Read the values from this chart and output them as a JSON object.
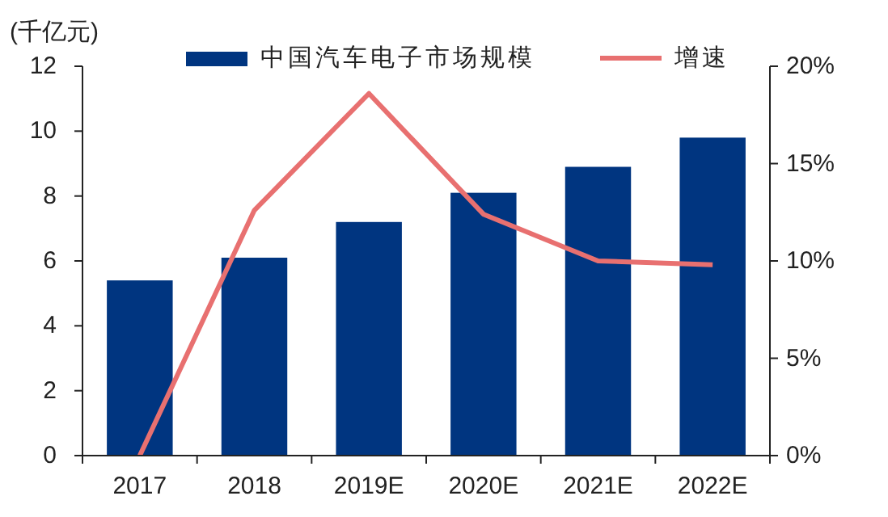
{
  "chart_data": {
    "type": "bar",
    "ylabel": "(千亿元)",
    "categories": [
      "2017",
      "2018",
      "2019E",
      "2020E",
      "2021E",
      "2022E"
    ],
    "series": [
      {
        "name": "中国汽车电子市场规模",
        "color": "#003580",
        "values": [
          5.4,
          6.1,
          7.2,
          8.1,
          8.9,
          9.8
        ]
      },
      {
        "name": "增速",
        "type": "line",
        "axis": "y2",
        "color": "#e87070",
        "values": [
          0,
          12.6,
          18.6,
          12.4,
          10.0,
          9.8
        ]
      }
    ],
    "ylim": [
      0,
      12
    ],
    "yticks": [
      0,
      2,
      4,
      6,
      8,
      10,
      12
    ],
    "y2lim": [
      0,
      20
    ],
    "y2ticks": [
      {
        "value": 0,
        "label": "0%"
      },
      {
        "value": 5,
        "label": "5%"
      },
      {
        "value": 10,
        "label": "10%"
      },
      {
        "value": 15,
        "label": "15%"
      },
      {
        "value": 20,
        "label": "20%"
      }
    ],
    "legend": "top",
    "grid": false,
    "marker": "none"
  }
}
